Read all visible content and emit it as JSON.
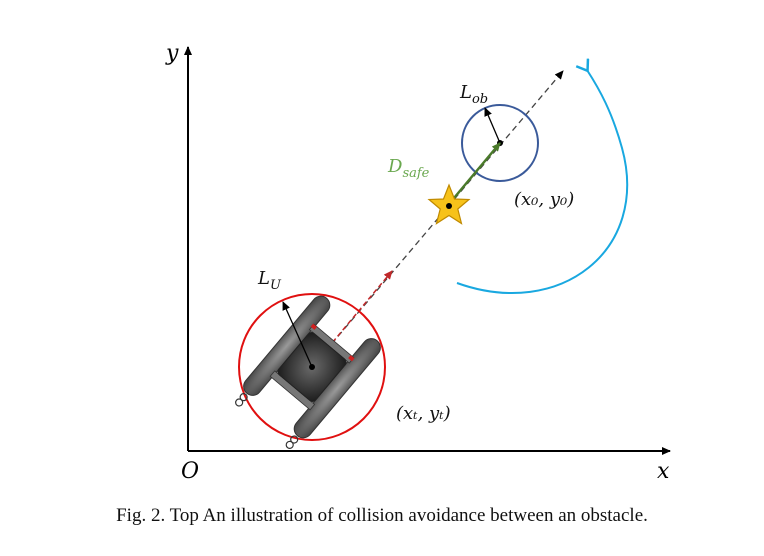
{
  "axes": {
    "y_label": "y",
    "x_label": "x",
    "origin_label": "O"
  },
  "labels": {
    "l_ob_main": "L",
    "l_ob_sub": "ob",
    "d_safe_main": "D",
    "d_safe_sub": "safe",
    "l_u_main": "L",
    "l_u_sub": "U",
    "obstacle_coord": "(x₀, y₀)",
    "vehicle_coord": "(xₜ, yₜ)"
  },
  "caption": {
    "text": "Fig. 2.   Top An illustration of collision avoidance between an obstacle."
  },
  "colors": {
    "axis": "#000000",
    "obstacle_circle": "#3a5a9a",
    "vehicle_circle": "#e01010",
    "safe_arrow": "#4a7a2a",
    "safe_label": "#6aa84f",
    "curve_arrow": "#19a8e0",
    "star_fill": "#f7c21a",
    "star_stroke": "#c08a00",
    "heading_arrow": "#c0282a"
  },
  "icons": {
    "vehicle": "catamaran-usv-icon",
    "star": "star-icon"
  }
}
